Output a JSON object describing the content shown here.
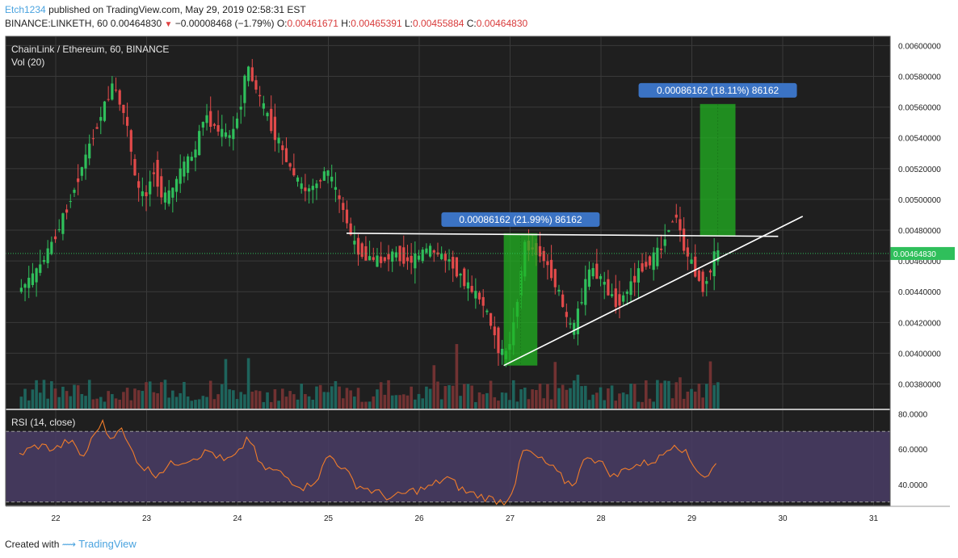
{
  "header": {
    "author": "Etch1234",
    "published_text": "published on TradingView.com, May 29, 2019 02:58:31 EST",
    "symbol": "BINANCE:LINKETH, 60",
    "last": "0.00464830",
    "change": "−0.00008468 (−1.79%)",
    "o_label": "O:",
    "o": "0.00461671",
    "h_label": "H:",
    "h": "0.00465391",
    "l_label": "L:",
    "l": "0.00455884",
    "c_label": "C:",
    "c": "0.00464830"
  },
  "footer": {
    "created_with": "Created with",
    "brand": "TradingView"
  },
  "colors": {
    "up": "#26a69a",
    "down": "#ef5350",
    "up_body": "#2fbf5b",
    "down_body": "#e24a4a",
    "grid": "#3a3a3a",
    "background": "#1f1f1f",
    "price_line": "#2fbf5b",
    "rsi": "#f07c2a",
    "rsi_band": "#4a3d66",
    "range_box": "#21b321",
    "annotation_bg": "#3b73c4"
  },
  "chart_data": [
    {
      "type": "candlestick",
      "title": "ChainLink / Ethereum, 60, BINANCE",
      "volume_label": "Vol (20)",
      "ylim": [
        0.00364,
        0.00606
      ],
      "y_ticks": [
        "0.00600000",
        "0.00580000",
        "0.00560000",
        "0.00540000",
        "0.00520000",
        "0.00500000",
        "0.00480000",
        "0.00460000",
        "0.00440000",
        "0.00420000",
        "0.00400000",
        "0.00380000"
      ],
      "x_ticks": [
        "22",
        "23",
        "24",
        "25",
        "26",
        "27",
        "28",
        "29",
        "30",
        "31"
      ],
      "last_price": "0.00464830",
      "price_path": [
        [
          21.6,
          0.0044
        ],
        [
          21.8,
          0.00452
        ],
        [
          21.95,
          0.00468
        ],
        [
          22.1,
          0.00488
        ],
        [
          22.3,
          0.0052
        ],
        [
          22.45,
          0.00545
        ],
        [
          22.55,
          0.0056
        ],
        [
          22.65,
          0.00575
        ],
        [
          22.8,
          0.0055
        ],
        [
          22.9,
          0.0051
        ],
        [
          23.0,
          0.005
        ],
        [
          23.1,
          0.0052
        ],
        [
          23.2,
          0.005
        ],
        [
          23.3,
          0.00505
        ],
        [
          23.4,
          0.0052
        ],
        [
          23.55,
          0.0053
        ],
        [
          23.65,
          0.00555
        ],
        [
          23.8,
          0.00545
        ],
        [
          23.95,
          0.0054
        ],
        [
          24.05,
          0.0056
        ],
        [
          24.12,
          0.00588
        ],
        [
          24.2,
          0.00575
        ],
        [
          24.3,
          0.0056
        ],
        [
          24.45,
          0.0054
        ],
        [
          24.6,
          0.0052
        ],
        [
          24.75,
          0.00505
        ],
        [
          24.9,
          0.0051
        ],
        [
          25.0,
          0.0052
        ],
        [
          25.1,
          0.00505
        ],
        [
          25.2,
          0.0049
        ],
        [
          25.3,
          0.0047
        ],
        [
          25.45,
          0.00462
        ],
        [
          25.6,
          0.0046
        ],
        [
          25.75,
          0.00465
        ],
        [
          25.9,
          0.0046
        ],
        [
          26.0,
          0.00462
        ],
        [
          26.1,
          0.00468
        ],
        [
          26.2,
          0.00465
        ],
        [
          26.35,
          0.0046
        ],
        [
          26.5,
          0.00448
        ],
        [
          26.6,
          0.0044
        ],
        [
          26.7,
          0.00435
        ],
        [
          26.8,
          0.0042
        ],
        [
          26.9,
          0.00402
        ],
        [
          26.97,
          0.00398
        ],
        [
          27.05,
          0.00415
        ],
        [
          27.12,
          0.00445
        ],
        [
          27.18,
          0.0047
        ],
        [
          27.25,
          0.00468
        ],
        [
          27.35,
          0.00465
        ],
        [
          27.45,
          0.00455
        ],
        [
          27.55,
          0.0044
        ],
        [
          27.65,
          0.0042
        ],
        [
          27.72,
          0.00415
        ],
        [
          27.8,
          0.00435
        ],
        [
          27.9,
          0.00455
        ],
        [
          28.0,
          0.0045
        ],
        [
          28.1,
          0.0044
        ],
        [
          28.2,
          0.00432
        ],
        [
          28.3,
          0.0044
        ],
        [
          28.45,
          0.00455
        ],
        [
          28.6,
          0.00462
        ],
        [
          28.7,
          0.0047
        ],
        [
          28.78,
          0.00485
        ],
        [
          28.85,
          0.0049
        ],
        [
          28.92,
          0.0047
        ],
        [
          29.0,
          0.0046
        ],
        [
          29.08,
          0.0045
        ],
        [
          29.15,
          0.00442
        ],
        [
          29.22,
          0.00455
        ],
        [
          29.28,
          0.00465
        ]
      ],
      "annotations": [
        {
          "text": "0.00086162 (21.99%) 86162",
          "x0": 26.93,
          "x1": 27.3,
          "y0": 0.00392,
          "y1": 0.00478
        },
        {
          "text": "0.00086162 (18.11%) 86162",
          "x0": 29.09,
          "x1": 29.48,
          "y0": 0.00476,
          "y1": 0.00562
        }
      ],
      "trendlines": [
        {
          "name": "horizontal-resistance",
          "p1": [
            25.2,
            0.00478
          ],
          "p2": [
            29.95,
            0.00476
          ]
        },
        {
          "name": "rising-support",
          "p1": [
            26.93,
            0.00392
          ],
          "p2": [
            30.22,
            0.00489
          ]
        }
      ]
    },
    {
      "type": "line",
      "title": "RSI (14, close)",
      "ylim": [
        28,
        82
      ],
      "y_ticks": [
        "80.0000",
        "60.0000",
        "40.0000"
      ],
      "bands": [
        30,
        70
      ],
      "rsi_path": [
        [
          21.6,
          57
        ],
        [
          21.8,
          62
        ],
        [
          22.0,
          60
        ],
        [
          22.15,
          65
        ],
        [
          22.3,
          55
        ],
        [
          22.5,
          76
        ],
        [
          22.6,
          66
        ],
        [
          22.7,
          73
        ],
        [
          22.8,
          62
        ],
        [
          22.95,
          50
        ],
        [
          23.1,
          46
        ],
        [
          23.3,
          52
        ],
        [
          23.5,
          55
        ],
        [
          23.7,
          59
        ],
        [
          23.85,
          53
        ],
        [
          24.0,
          56
        ],
        [
          24.12,
          68
        ],
        [
          24.25,
          50
        ],
        [
          24.45,
          47
        ],
        [
          24.6,
          42
        ],
        [
          24.75,
          38
        ],
        [
          24.9,
          45
        ],
        [
          25.0,
          57
        ],
        [
          25.15,
          50
        ],
        [
          25.3,
          40
        ],
        [
          25.5,
          36
        ],
        [
          25.7,
          32
        ],
        [
          25.9,
          36
        ],
        [
          26.1,
          38
        ],
        [
          26.3,
          44
        ],
        [
          26.5,
          36
        ],
        [
          26.7,
          33
        ],
        [
          26.85,
          31
        ],
        [
          26.95,
          30
        ],
        [
          27.05,
          40
        ],
        [
          27.15,
          60
        ],
        [
          27.3,
          55
        ],
        [
          27.45,
          50
        ],
        [
          27.6,
          42
        ],
        [
          27.7,
          40
        ],
        [
          27.85,
          57
        ],
        [
          28.0,
          52
        ],
        [
          28.15,
          44
        ],
        [
          28.3,
          50
        ],
        [
          28.5,
          52
        ],
        [
          28.65,
          55
        ],
        [
          28.8,
          64
        ],
        [
          28.9,
          60
        ],
        [
          29.0,
          52
        ],
        [
          29.15,
          44
        ],
        [
          29.25,
          50
        ],
        [
          29.3,
          54
        ]
      ]
    }
  ]
}
